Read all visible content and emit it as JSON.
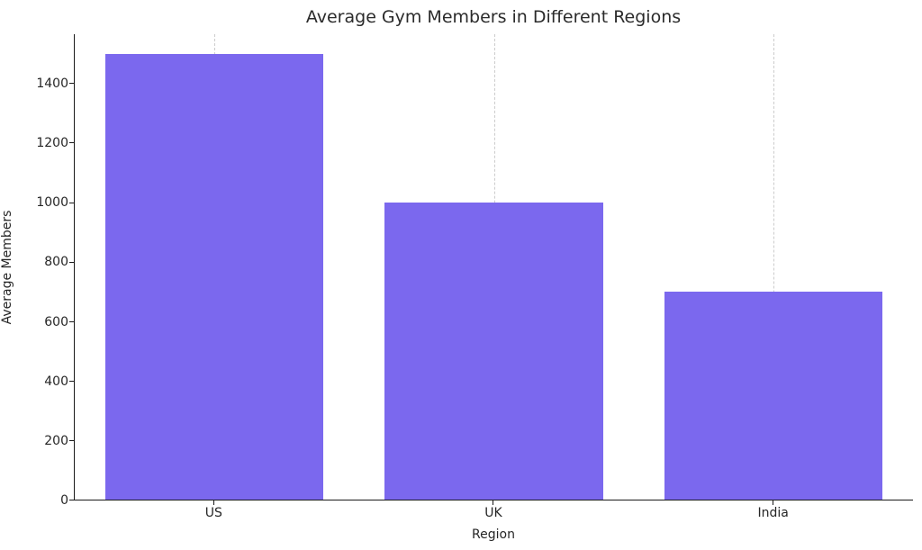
{
  "chart_data": {
    "type": "bar",
    "title": "Average Gym Members in Different Regions",
    "xlabel": "Region",
    "ylabel": "Average Members",
    "categories": [
      "US",
      "UK",
      "India"
    ],
    "values": [
      1500,
      1000,
      700
    ],
    "ylim": [
      0,
      1566
    ],
    "y_ticks": [
      0,
      200,
      400,
      600,
      800,
      1000,
      1200,
      1400
    ],
    "bar_color": "#7b68ee",
    "gridline_color": "#cccccc",
    "grid": "vertical-dashed",
    "legend": "none",
    "bar_width_fraction": 0.78
  }
}
